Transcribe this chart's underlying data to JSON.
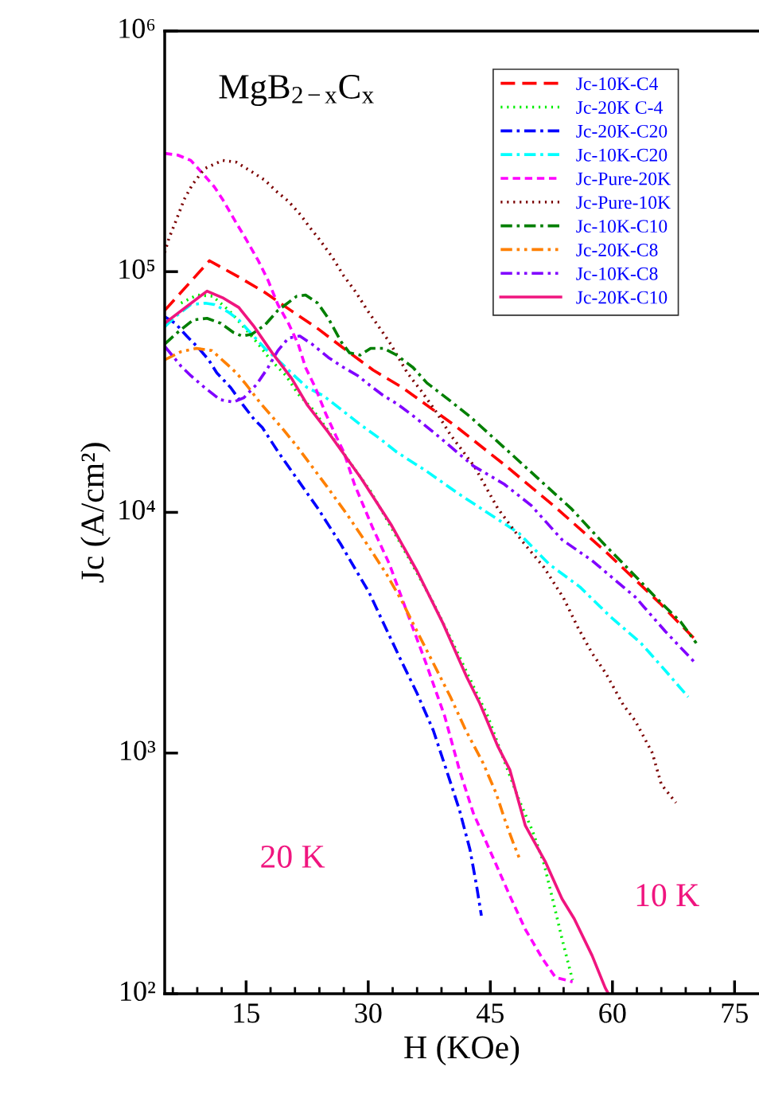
{
  "chart_data": {
    "type": "line",
    "xlabel": "H (KOe)",
    "ylabel": "Jc (A/cm²)",
    "log": "y",
    "xlim": [
      5,
      78
    ],
    "xticks": [
      15,
      30,
      45,
      60,
      75
    ],
    "ylim": [
      100,
      1000000
    ],
    "yticks": [
      {
        "value": 100,
        "label": "10²"
      },
      {
        "value": 1000,
        "label": "10³"
      },
      {
        "value": 10000,
        "label": "10⁴"
      },
      {
        "value": 100000,
        "label": "10⁵"
      },
      {
        "value": 1000000,
        "label": "10⁶"
      }
    ],
    "grid": false,
    "legend": "top right",
    "marker": "none",
    "annotations": [
      "MgB$_{2−x}$C$_{x}$",
      "20 K",
      "10 K"
    ],
    "series": [
      {
        "name": "Jc-10K-C4",
        "color": "#ff0000",
        "line_style": "dashed",
        "x": [
          5.0,
          10.5,
          14.1,
          17.3,
          20.5,
          23.8,
          27.0,
          30.6,
          34.2,
          40.6,
          46.9,
          53.0,
          59.3,
          65.8,
          70.0
        ],
        "values": [
          69000,
          111000,
          95000,
          82000,
          69000,
          58000,
          48000,
          39000,
          33000,
          23000,
          15600,
          10500,
          6800,
          4200,
          3000
        ]
      },
      {
        "name": "Jc-20K C-4",
        "color": "#00ee00",
        "line_style": "dotted",
        "x": [
          7.0,
          9.0,
          10.9,
          12.9,
          14.7,
          16.5,
          18.0,
          19.9,
          21.4,
          23.1,
          24.6,
          26.0,
          30.3,
          33.7,
          36.0,
          38.0,
          41.0,
          42.9,
          44.7,
          46.3,
          48.5,
          50.2,
          51.6,
          52.6,
          54.0,
          55.1
        ],
        "values": [
          74000,
          80000,
          79000,
          69000,
          59000,
          50000,
          43000,
          37000,
          31000,
          27000,
          23000,
          19600,
          12200,
          7700,
          5600,
          4200,
          2600,
          1900,
          1420,
          1010,
          641,
          473,
          346,
          251,
          159,
          114
        ]
      },
      {
        "name": "Jc-20K-C20",
        "color": "#0000ff",
        "line_style": "dashdot",
        "x": [
          5.0,
          6.3,
          7.7,
          9.2,
          10.4,
          11.4,
          13.1,
          14.7,
          16.0,
          17.0,
          18.9,
          23.8,
          26.6,
          28.3,
          30.1,
          31.9,
          34.1,
          36.0,
          38.0,
          39.6,
          41.2,
          42.5,
          43.3,
          43.9
        ],
        "values": [
          65000,
          61000,
          54000,
          48000,
          43000,
          38000,
          33000,
          27700,
          24300,
          22500,
          17900,
          10400,
          7400,
          5900,
          4650,
          3450,
          2400,
          1770,
          1240,
          851,
          581,
          397,
          282,
          211
        ]
      },
      {
        "name": "Jc-10K-C20",
        "color": "#00ffff",
        "line_style": "dashdot",
        "x": [
          5.0,
          6.3,
          8.2,
          10.0,
          11.1,
          12.8,
          14.1,
          15.7,
          17.3,
          18.9,
          20.9,
          22.5,
          24.5,
          26.4,
          29.0,
          31.3,
          33.5,
          37.2,
          41.0,
          44.4,
          48.5,
          52.2,
          56.0,
          59.7,
          63.5,
          66.5,
          69.3
        ],
        "values": [
          59000,
          65000,
          73000,
          74000,
          73000,
          68000,
          63000,
          55000,
          48000,
          43000,
          37000,
          33000,
          30500,
          27200,
          23200,
          20400,
          17800,
          14800,
          12000,
          10100,
          8200,
          6100,
          4900,
          3700,
          2860,
          2200,
          1710
        ]
      },
      {
        "name": "Jc-Pure-20K",
        "color": "#ff00ff",
        "line_style": "short dashed",
        "x": [
          5.0,
          6.6,
          8.2,
          9.7,
          11.1,
          12.1,
          13.9,
          14.8,
          16.5,
          17.7,
          18.9,
          20.2,
          21.4,
          22.3,
          23.5,
          24.8,
          26.0,
          27.0,
          28.3,
          30.5,
          32.6,
          34.7,
          37.1,
          39.4,
          41.2,
          42.9,
          44.9,
          47.4,
          49.3,
          51.4,
          53.0,
          55.1
        ],
        "values": [
          310000,
          305000,
          290000,
          255000,
          225000,
          200000,
          157000,
          140000,
          111000,
          92000,
          73000,
          61000,
          50000,
          40000,
          33000,
          25600,
          20900,
          17800,
          13100,
          8700,
          6100,
          3900,
          2360,
          1420,
          851,
          564,
          397,
          255,
          185,
          140,
          117,
          112
        ]
      },
      {
        "name": "Jc-Pure-10K",
        "color": "#7b0000",
        "line_style": "dotted",
        "x": [
          5.0,
          5.5,
          6.3,
          7.4,
          8.4,
          9.9,
          12.1,
          13.8,
          15.7,
          17.3,
          18.7,
          20.2,
          21.7,
          22.8,
          23.8,
          25.5,
          27.0,
          28.5,
          29.9,
          31.3,
          32.6,
          33.7,
          34.8,
          36.5,
          38.4,
          40.1,
          43.1,
          45.9,
          48.9,
          51.6,
          54.0,
          55.8,
          57.5,
          59.2,
          61.3,
          62.8,
          64.9,
          66.0,
          67.8
        ],
        "values": [
          120000,
          137000,
          160000,
          200000,
          230000,
          268000,
          290000,
          285000,
          260000,
          240000,
          216000,
          196000,
          172000,
          153000,
          139000,
          116000,
          96000,
          82000,
          69000,
          59000,
          51000,
          44000,
          38000,
          32000,
          26000,
          21000,
          15400,
          10400,
          7600,
          5900,
          4400,
          3300,
          2600,
          2140,
          1590,
          1360,
          1000,
          741,
          622
        ]
      },
      {
        "name": "Jc-10K-C10",
        "color": "#007f00",
        "line_style": "dashdot",
        "x": [
          5.0,
          6.6,
          8.5,
          10.2,
          11.9,
          13.4,
          14.5,
          15.7,
          17.3,
          18.9,
          21.2,
          22.3,
          23.8,
          25.1,
          26.7,
          27.7,
          29.0,
          30.3,
          31.9,
          33.5,
          35.5,
          37.2,
          40.1,
          42.5,
          47.0,
          51.2,
          54.9,
          59.1,
          62.0,
          65.4,
          68.4,
          70.3
        ],
        "values": [
          50000,
          56000,
          63000,
          64000,
          61000,
          56000,
          54000,
          55000,
          60000,
          69000,
          79000,
          80000,
          74000,
          64000,
          51000,
          46000,
          45000,
          48000,
          48000,
          45000,
          40000,
          34500,
          29000,
          25000,
          18200,
          13500,
          10400,
          7300,
          5800,
          4400,
          3500,
          2860
        ]
      },
      {
        "name": "Jc-20K-C8",
        "color": "#ff8000",
        "line_style": "dashdotdot",
        "x": [
          5.0,
          7.0,
          8.9,
          10.8,
          12.4,
          13.8,
          15.0,
          16.8,
          18.1,
          19.6,
          21.2,
          25.0,
          27.4,
          29.6,
          32.3,
          34.1,
          36.0,
          38.0,
          40.1,
          42.0,
          44.1,
          45.7,
          46.9,
          47.8,
          48.7
        ],
        "values": [
          43000,
          46500,
          48000,
          47000,
          42000,
          38000,
          34000,
          28300,
          25200,
          22000,
          18900,
          12700,
          9800,
          7600,
          5500,
          4300,
          3200,
          2360,
          1710,
          1240,
          910,
          682,
          514,
          425,
          356
        ]
      },
      {
        "name": "Jc-10K-C8",
        "color": "#8000ff",
        "line_style": "dashdotdot",
        "x": [
          5.0,
          7.0,
          8.2,
          9.9,
          11.8,
          13.4,
          14.7,
          16.3,
          17.7,
          18.9,
          20.2,
          21.6,
          23.1,
          25.1,
          26.7,
          28.7,
          30.3,
          31.9,
          33.5,
          35.5,
          38.4,
          42.9,
          46.7,
          50.0,
          53.8,
          57.5,
          62.8,
          66.5,
          70.0
        ],
        "values": [
          49000,
          40500,
          37000,
          33000,
          29400,
          28700,
          29900,
          34000,
          40000,
          47000,
          53000,
          54000,
          50000,
          44000,
          40500,
          37000,
          33500,
          30500,
          28300,
          25200,
          21000,
          15600,
          13100,
          10700,
          7700,
          6300,
          4450,
          3200,
          2400
        ]
      },
      {
        "name": "Jc-20K-C10",
        "color": "#f0157f",
        "line_style": "solid",
        "x": [
          5.0,
          10.2,
          12.1,
          14.1,
          16.0,
          18.2,
          20.6,
          22.5,
          25.1,
          29.1,
          32.8,
          36.0,
          39.2,
          42.1,
          43.7,
          45.9,
          47.4,
          49.3,
          51.8,
          53.8,
          55.3,
          57.5,
          59.1,
          59.5
        ],
        "values": [
          61000,
          83000,
          78000,
          71000,
          59000,
          46000,
          36000,
          28000,
          21500,
          13900,
          8900,
          5700,
          3450,
          2070,
          1610,
          1070,
          851,
          499,
          351,
          248,
          205,
          144,
          106,
          100
        ]
      }
    ]
  }
}
